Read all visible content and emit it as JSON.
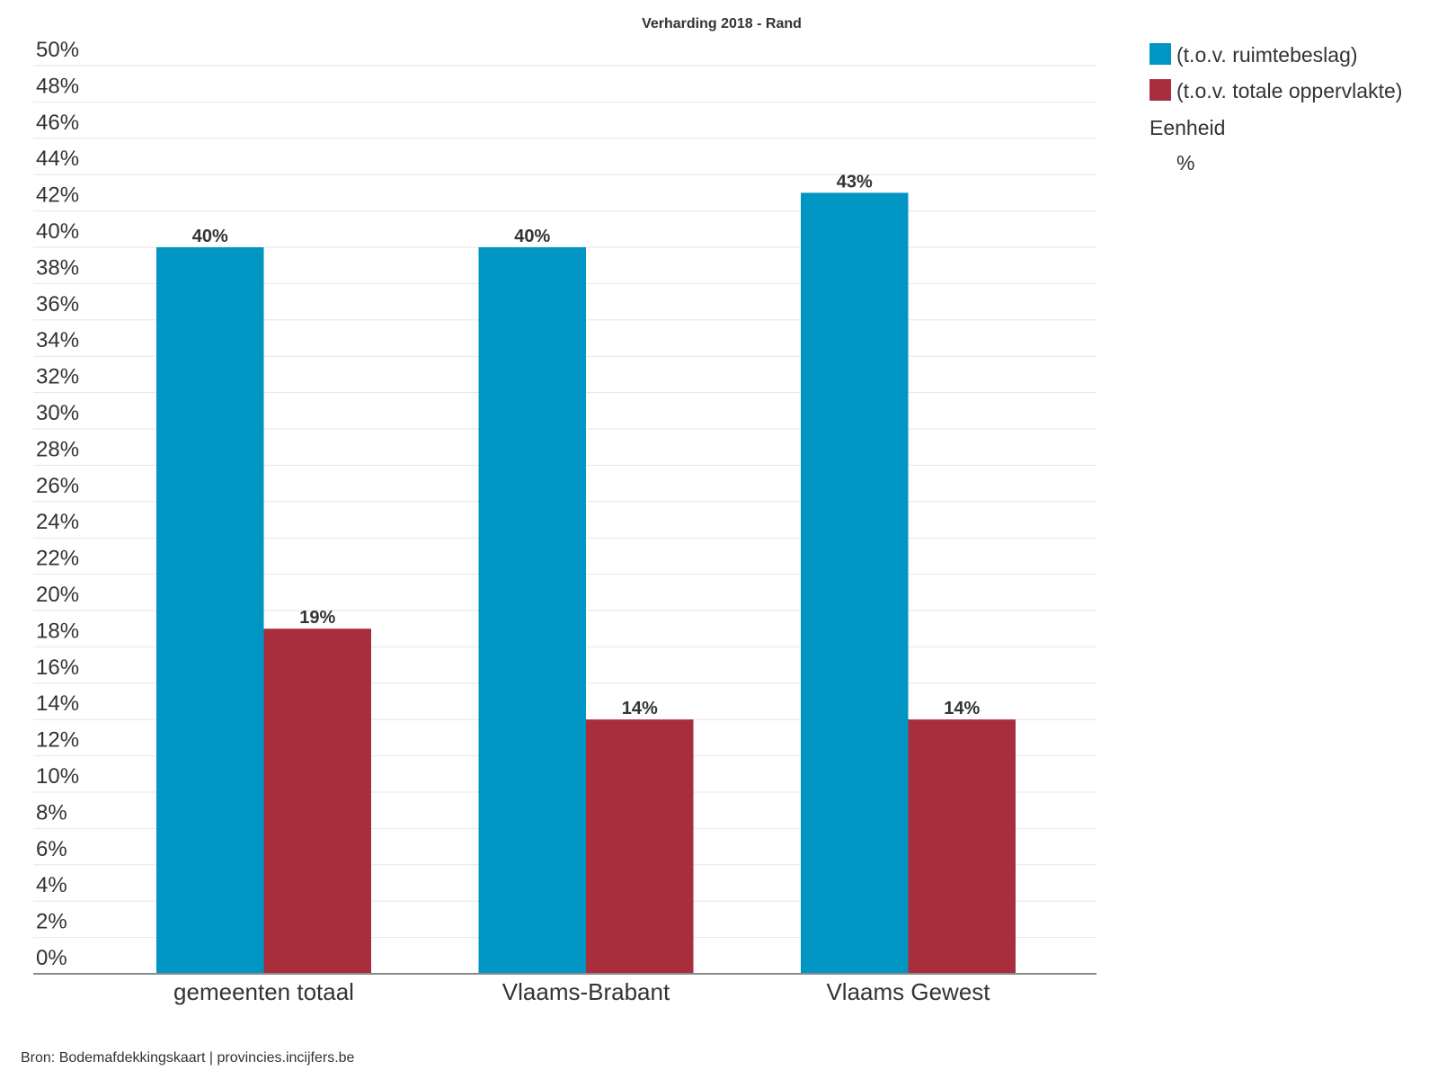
{
  "chart_data": {
    "type": "bar",
    "title": "Verharding 2018 - Rand",
    "categories": [
      "gemeenten totaal",
      "Vlaams-Brabant",
      "Vlaams Gewest"
    ],
    "series": [
      {
        "name": "(t.o.v. ruimtebeslag)",
        "values": [
          40,
          40,
          43
        ],
        "labels": [
          "40%",
          "40%",
          "43%"
        ],
        "color": "#0095c2"
      },
      {
        "name": "(t.o.v. totale oppervlakte)",
        "values": [
          19,
          14,
          14
        ],
        "labels": [
          "19%",
          "14%",
          "14%"
        ],
        "color": "#a82e3e"
      }
    ],
    "ylim": [
      0,
      50
    ],
    "yticks": [
      "0%",
      "2%",
      "4%",
      "6%",
      "8%",
      "10%",
      "12%",
      "14%",
      "16%",
      "18%",
      "20%",
      "22%",
      "24%",
      "26%",
      "28%",
      "30%",
      "32%",
      "34%",
      "36%",
      "38%",
      "40%",
      "42%",
      "44%",
      "46%",
      "48%",
      "50%"
    ],
    "ytick_values": [
      0,
      2,
      4,
      6,
      8,
      10,
      12,
      14,
      16,
      18,
      20,
      22,
      24,
      26,
      28,
      30,
      32,
      34,
      36,
      38,
      40,
      42,
      44,
      46,
      48,
      50
    ],
    "grid": true,
    "legend_position": "top-right",
    "legend_extra": {
      "heading": "Eenheid",
      "value": "%"
    }
  },
  "source": "Bron: Bodemafdekkingskaart | provincies.incijfers.be"
}
